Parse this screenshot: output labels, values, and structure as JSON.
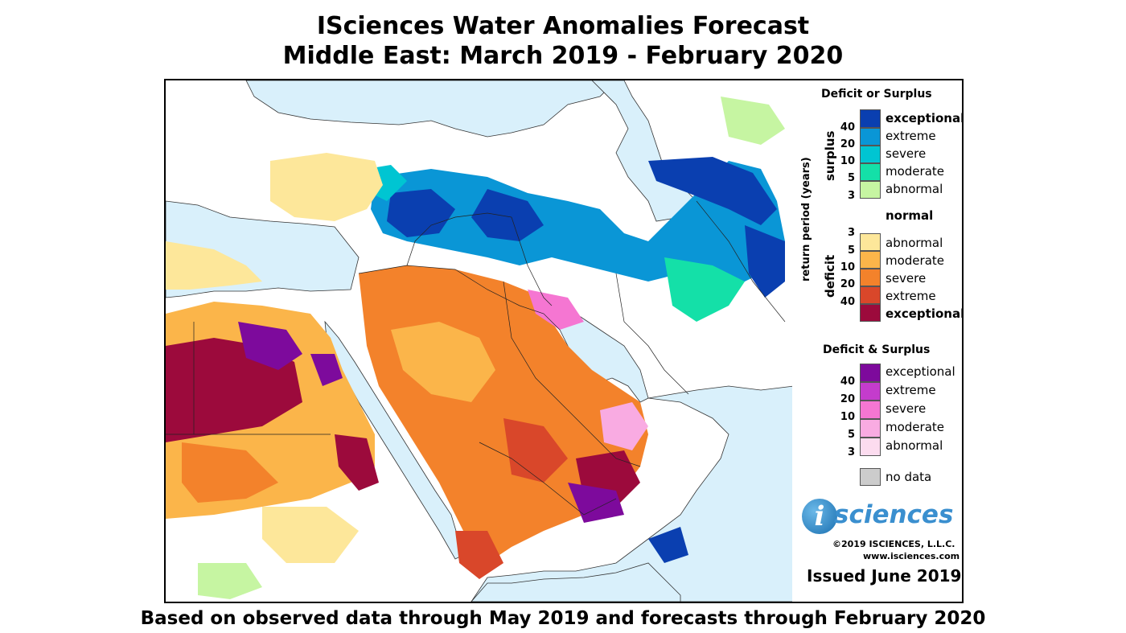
{
  "title_line1": "ISciences Water Anomalies Forecast",
  "title_line2": "Middle East: March 2019 - February 2020",
  "footer": "Based on observed data through May 2019 and forecasts through February 2020",
  "legend": {
    "section1_title": "Deficit or Surplus",
    "axis_label": "return period (years)",
    "surplus_label": "surplus",
    "deficit_label": "deficit",
    "surplus": [
      {
        "label": "exceptional",
        "color": "#0a3fb0"
      },
      {
        "label": "extreme",
        "color": "#0a96d6"
      },
      {
        "label": "severe",
        "color": "#00c5d2"
      },
      {
        "label": "moderate",
        "color": "#14e0a8"
      },
      {
        "label": "abnormal",
        "color": "#c6f5a2"
      }
    ],
    "surplus_numbers": [
      "40",
      "20",
      "10",
      "5",
      "3"
    ],
    "normal_label": "normal",
    "deficit": [
      {
        "label": "abnormal",
        "color": "#fde79a"
      },
      {
        "label": "moderate",
        "color": "#fbb54a"
      },
      {
        "label": "severe",
        "color": "#f3822b"
      },
      {
        "label": "extreme",
        "color": "#d9472a"
      },
      {
        "label": "exceptional",
        "color": "#9c0a3c"
      }
    ],
    "deficit_numbers": [
      "3",
      "5",
      "10",
      "20",
      "40"
    ],
    "section2_title": "Deficit & Surplus",
    "both": [
      {
        "label": "exceptional",
        "color": "#7d0a9c"
      },
      {
        "label": "extreme",
        "color": "#c43ccc"
      },
      {
        "label": "severe",
        "color": "#f576d2"
      },
      {
        "label": "moderate",
        "color": "#f9abe2"
      },
      {
        "label": "abnormal",
        "color": "#fcdcef"
      }
    ],
    "both_numbers": [
      "40",
      "20",
      "10",
      "5",
      "3"
    ],
    "nodata_label": "no data",
    "nodata_color": "#cccccc"
  },
  "logo": {
    "letter": "i",
    "text": "sciences"
  },
  "copyright": "©2019 ISCIENCES, L.L.C.",
  "website": "www.isciences.com",
  "issued": "Issued June 2019"
}
